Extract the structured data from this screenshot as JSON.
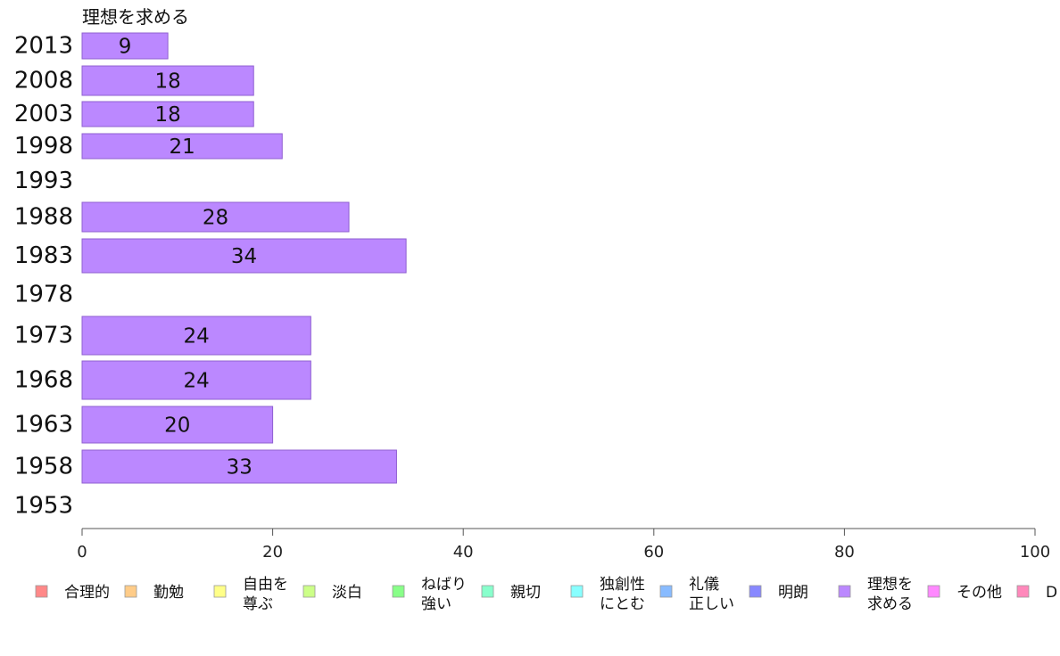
{
  "chart_data": {
    "type": "bar",
    "orientation": "horizontal",
    "title": "理想を求める",
    "categories": [
      "2013",
      "2008",
      "2003",
      "1998",
      "1993",
      "1988",
      "1983",
      "1978",
      "1973",
      "1968",
      "1963",
      "1958",
      "1953"
    ],
    "values": [
      9,
      18,
      18,
      21,
      null,
      28,
      34,
      null,
      24,
      24,
      20,
      33,
      null
    ],
    "value_labels": [
      "9",
      "18",
      "18",
      "21",
      "",
      "28",
      "34",
      "",
      "24",
      "24",
      "20",
      "33",
      ""
    ],
    "xlim": [
      0,
      100
    ],
    "xticks": [
      0,
      20,
      40,
      60,
      80,
      100
    ],
    "grid": false,
    "legend_position": "bottom",
    "bar_color": "#bb88ff",
    "bar_stroke": "#8f5fd1",
    "legend": [
      {
        "label": [
          "合理的"
        ],
        "color": "#ff8888"
      },
      {
        "label": [
          "勤勉"
        ],
        "color": "#ffcc88"
      },
      {
        "label": [
          "自由を",
          "尊ぶ"
        ],
        "color": "#ffff88"
      },
      {
        "label": [
          "淡白"
        ],
        "color": "#ccff88"
      },
      {
        "label": [
          "ねばり",
          "強い"
        ],
        "color": "#88ff88"
      },
      {
        "label": [
          "親切"
        ],
        "color": "#88ffcc"
      },
      {
        "label": [
          "独創性",
          "にとむ"
        ],
        "color": "#88ffff"
      },
      {
        "label": [
          "礼儀",
          "正しい"
        ],
        "color": "#88bbff"
      },
      {
        "label": [
          "明朗"
        ],
        "color": "#8888ff"
      },
      {
        "label": [
          "理想を",
          "求める"
        ],
        "color": "#bb88ff"
      },
      {
        "label": [
          "その他"
        ],
        "color": "#ff88ff"
      },
      {
        "label": [
          "D"
        ],
        "color": "#ff88bb"
      }
    ]
  }
}
